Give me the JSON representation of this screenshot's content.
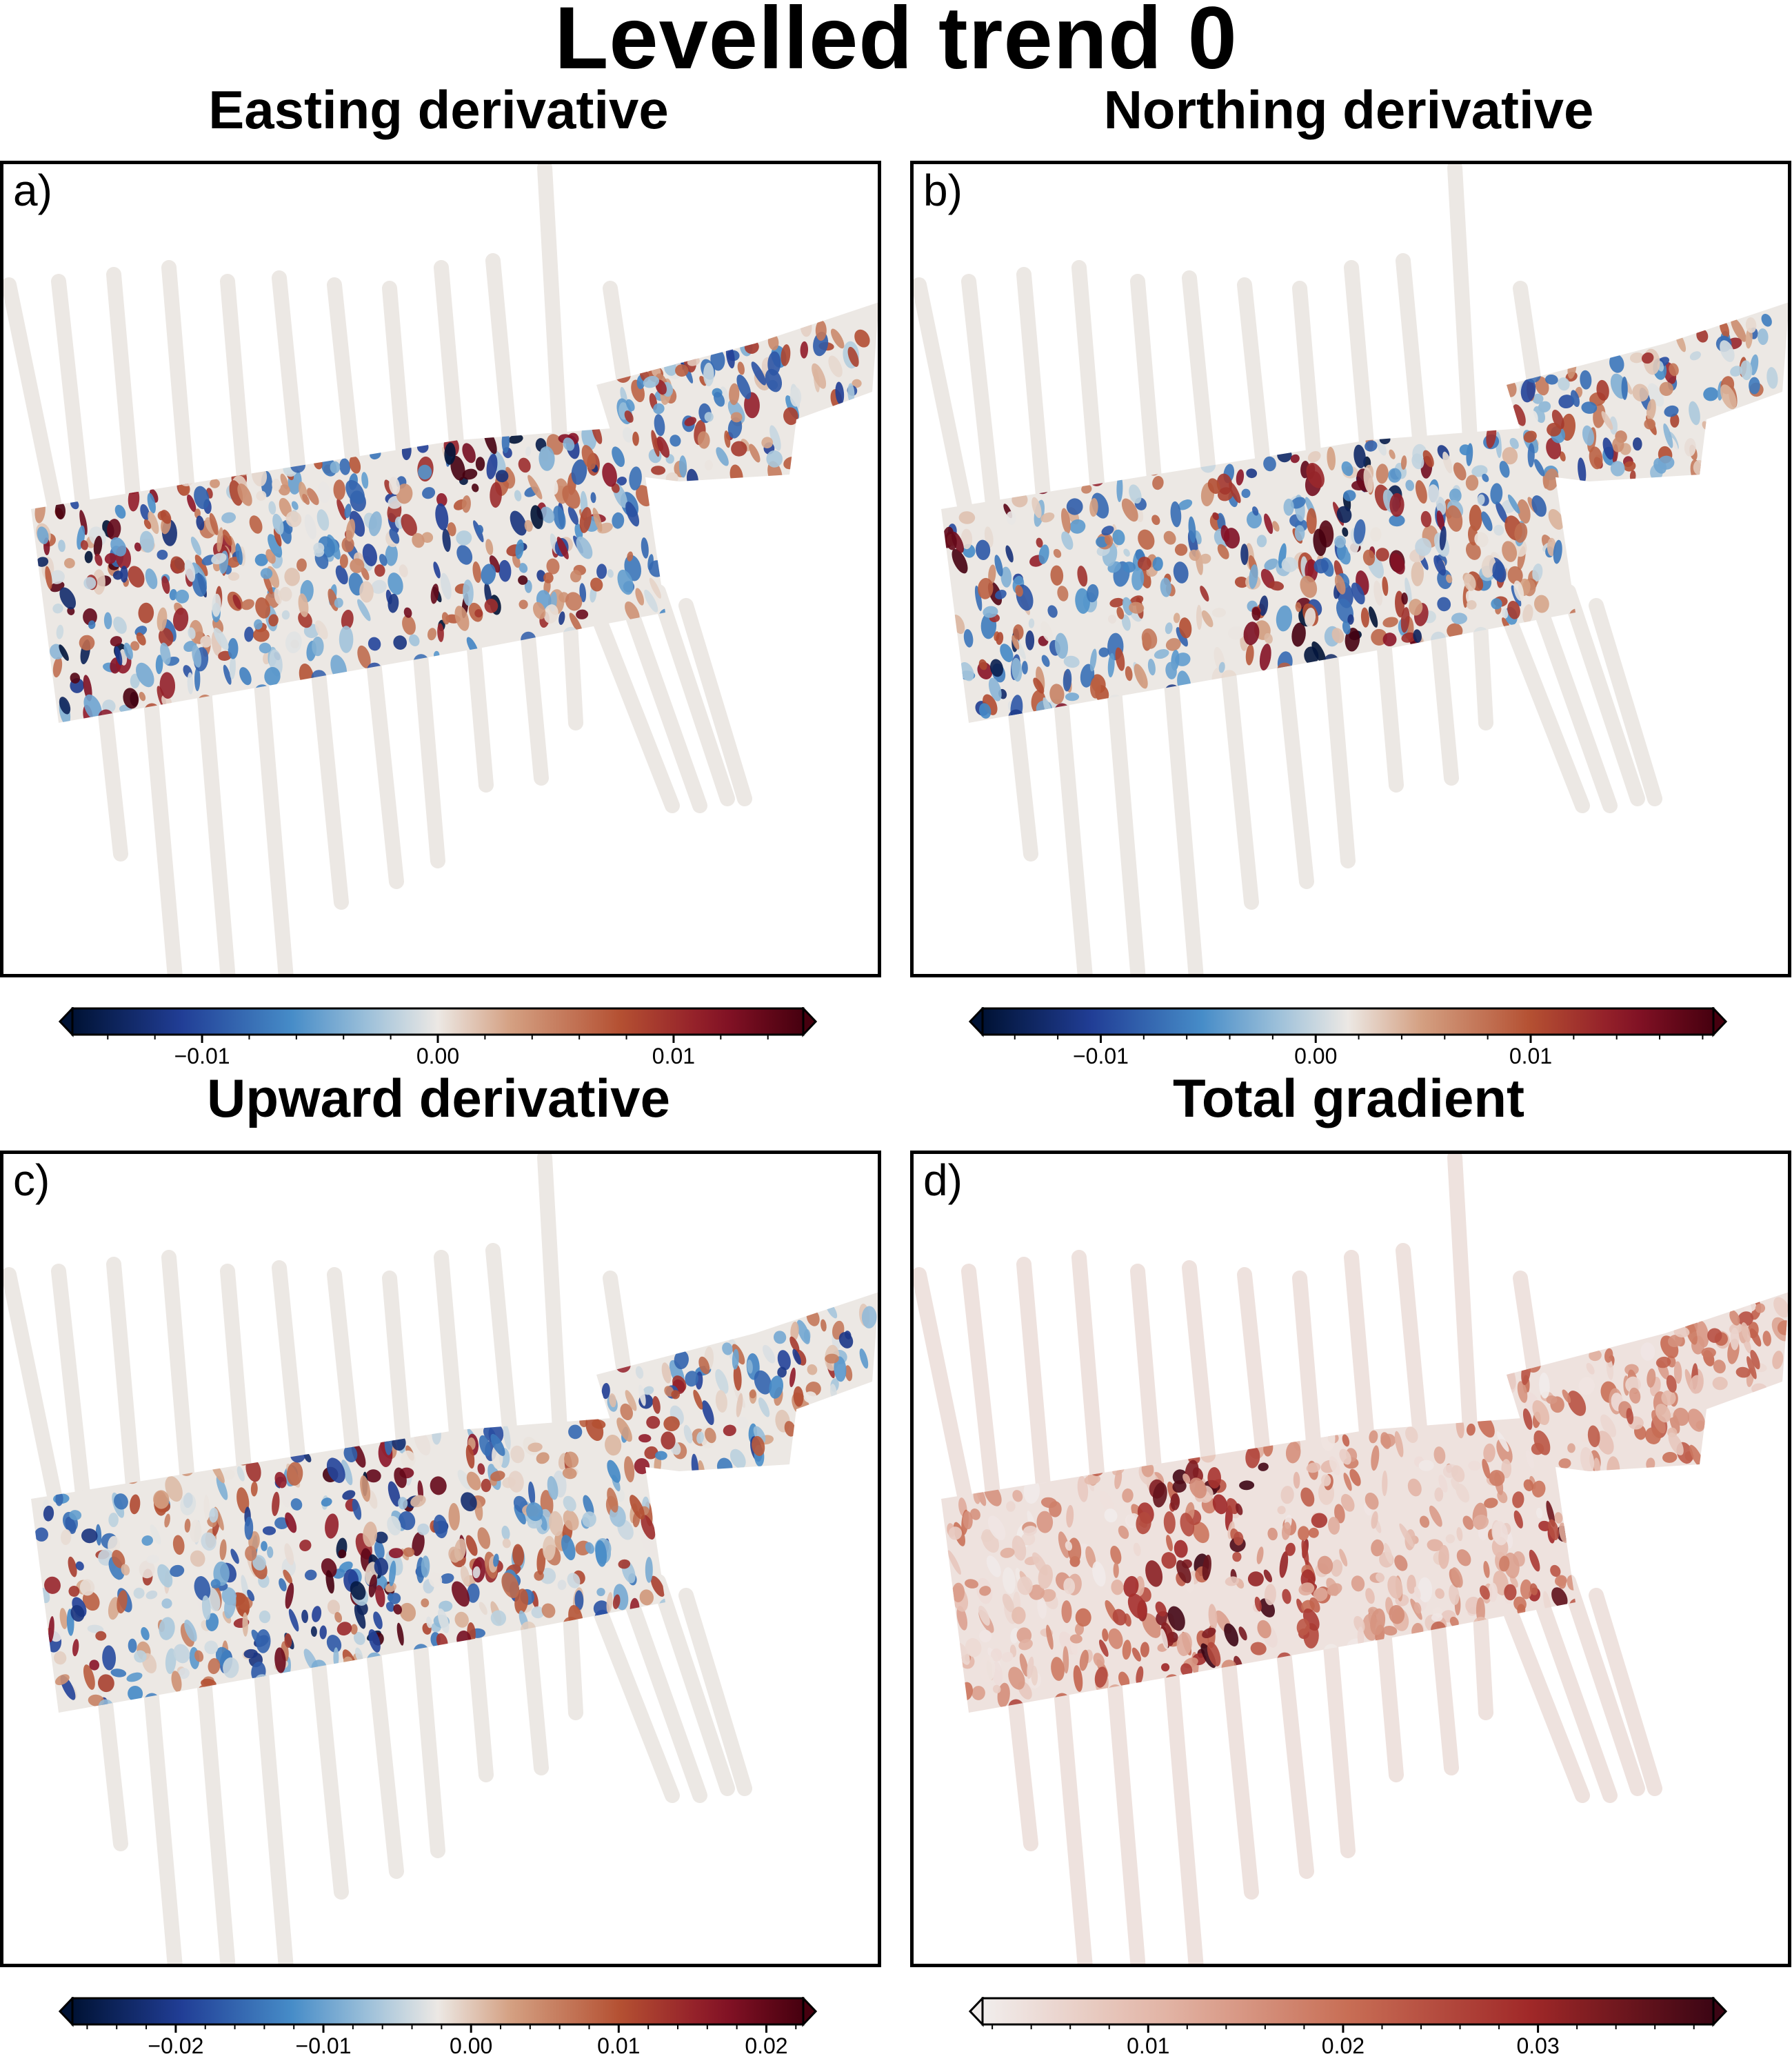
{
  "figure": {
    "title": "Levelled trend 0"
  },
  "chart_data": [
    {
      "panel_label": "a)",
      "type": "heatmap",
      "title": "Easting derivative",
      "colormap": "diverging blue-white-red (vik)",
      "colorbar": {
        "range": [
          -0.0155,
          0.0155
        ],
        "ticks": [
          -0.01,
          0.0,
          0.01
        ],
        "tick_labels": [
          "−0.01",
          "0.00",
          "0.01"
        ],
        "extend": "both"
      }
    },
    {
      "panel_label": "b)",
      "type": "heatmap",
      "title": "Northing derivative",
      "colormap": "diverging blue-white-red (vik)",
      "colorbar": {
        "range": [
          -0.0155,
          0.0185
        ],
        "ticks": [
          -0.01,
          0.0,
          0.01
        ],
        "tick_labels": [
          "−0.01",
          "0.00",
          "0.01"
        ],
        "extend": "both"
      }
    },
    {
      "panel_label": "c)",
      "type": "heatmap",
      "title": "Upward derivative",
      "colormap": "diverging blue-white-red (vik)",
      "colorbar": {
        "range": [
          -0.027,
          0.0225
        ],
        "ticks": [
          -0.02,
          -0.01,
          0.0,
          0.01,
          0.02
        ],
        "tick_labels": [
          "−0.02",
          "−0.01",
          "0.00",
          "0.01",
          "0.02"
        ],
        "extend": "both"
      }
    },
    {
      "panel_label": "d)",
      "type": "heatmap",
      "title": "Total gradient",
      "colormap": "sequential white-red (amp)",
      "colorbar": {
        "range": [
          0.0015,
          0.039
        ],
        "ticks": [
          0.01,
          0.02,
          0.03
        ],
        "tick_labels": [
          "0.01",
          "0.02",
          "0.03"
        ],
        "extend": "both"
      }
    }
  ]
}
